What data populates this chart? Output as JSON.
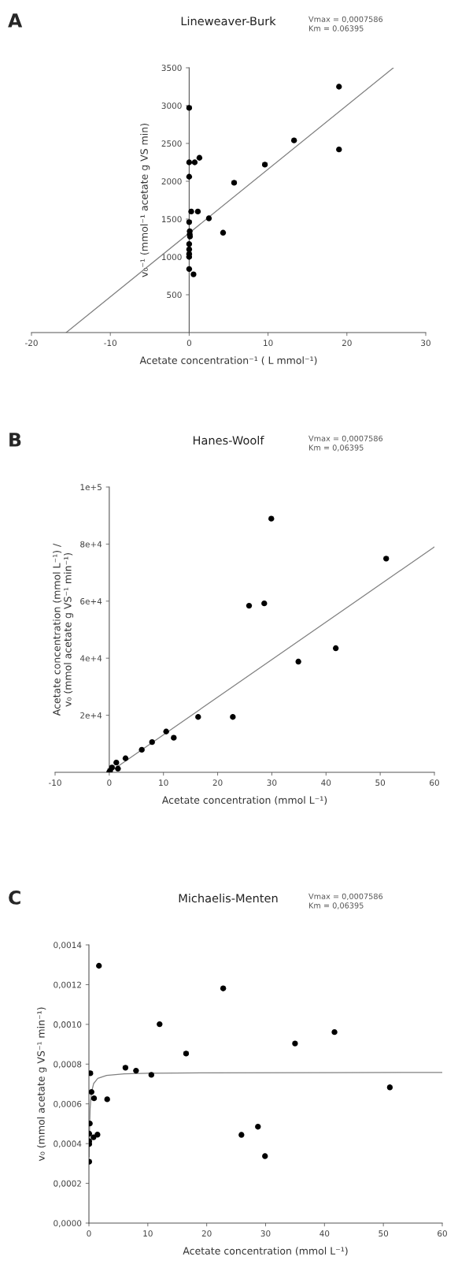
{
  "chart_data": [
    {
      "type": "scatter",
      "title": "Lineweaver-Burk",
      "xlabel": "Acetate concentration⁻¹ ( L mmol⁻¹)",
      "ylabel": "v₀⁻¹ (mmol⁻¹ acetate g VS min)",
      "annotations": [
        "A",
        "Vmax = 0,0007586\nKm = 0.06395"
      ],
      "xlim": [
        -20,
        30
      ],
      "xticks": [
        -20,
        -10,
        0,
        10,
        20,
        30
      ],
      "ylim": [
        0,
        3500
      ],
      "yticks": [
        500,
        1000,
        1500,
        2000,
        2500,
        3000,
        3500
      ],
      "series": [
        {
          "marker": "circle",
          "color": "#000000",
          "x": [
            0,
            19.0,
            19.0,
            13.3,
            9.6,
            5.7,
            2.5,
            4.3,
            1.3,
            0.7,
            0,
            0,
            0.26,
            1.1,
            0,
            0.07,
            0.07,
            0.1,
            0,
            0,
            0,
            0,
            0,
            0.55
          ],
          "values": [
            2970,
            3250,
            2420,
            2540,
            2220,
            1980,
            1510,
            1320,
            2310,
            2250,
            2250,
            2060,
            1600,
            1600,
            1460,
            1340,
            1300,
            1270,
            1170,
            1100,
            1040,
            1000,
            840,
            770
          ]
        },
        {
          "type": "line",
          "color": "#808080",
          "x": [
            -15.6,
            25.9
          ],
          "values": [
            0,
            3500
          ]
        }
      ]
    },
    {
      "type": "scatter",
      "title": "Hanes-Woolf",
      "xlabel": "Acetate concentration (mmol L⁻¹)",
      "ylabel": "Acetate concentration (mmol L⁻¹) /\nv₀ (mmol acetate g VS⁻¹ min⁻¹)",
      "annotations": [
        "B",
        "Vmax = 0,0007586\nKm = 0,06395"
      ],
      "xlim": [
        -10,
        60
      ],
      "xticks": [
        -10,
        0,
        10,
        20,
        30,
        40,
        50,
        60
      ],
      "ylim": [
        0,
        100000
      ],
      "yticks": [
        {
          "value": 20000,
          "label": "2e+4"
        },
        {
          "value": 40000,
          "label": "4e+4"
        },
        {
          "value": 60000,
          "label": "6e+4"
        },
        {
          "value": 80000,
          "label": "8e+4"
        },
        {
          "value": 100000,
          "label": "1e+5"
        }
      ],
      "series": [
        {
          "marker": "circle",
          "color": "#000000",
          "x": [
            29.9,
            51.1,
            25.8,
            28.6,
            34.9,
            41.8,
            16.4,
            22.8,
            10.5,
            11.9,
            7.9,
            6.0,
            3.0,
            1.3,
            1.6,
            0.5,
            0.16,
            0
          ],
          "values": [
            88900,
            74900,
            58400,
            59200,
            38800,
            43500,
            19400,
            19400,
            14300,
            12100,
            10600,
            7900,
            4900,
            3400,
            1300,
            1700,
            600,
            100
          ]
        },
        {
          "type": "line",
          "color": "#808080",
          "x": [
            0,
            60
          ],
          "values": [
            0,
            79000
          ]
        }
      ]
    },
    {
      "type": "scatter",
      "title": "Michaelis-Menten",
      "xlabel": "Acetate concentration (mmol L⁻¹)",
      "ylabel": "v₀ (mmol acetate g VS⁻¹ min⁻¹)",
      "annotations": [
        "C",
        "Vmax = 0,0007586\nKm = 0,06395"
      ],
      "xlim": [
        0,
        60
      ],
      "xticks": [
        0,
        10,
        20,
        30,
        40,
        50,
        60
      ],
      "ylim": [
        0,
        0.0014
      ],
      "yticks": [
        {
          "value": 0,
          "label": "0,0000"
        },
        {
          "value": 0.0002,
          "label": "0,0002"
        },
        {
          "value": 0.0004,
          "label": "0,0004"
        },
        {
          "value": 0.0006,
          "label": "0,0006"
        },
        {
          "value": 0.0008,
          "label": "0,0008"
        },
        {
          "value": 0.001,
          "label": "0,0010"
        },
        {
          "value": 0.0012,
          "label": "0,0012"
        },
        {
          "value": 0.0014,
          "label": "0,0014"
        }
      ],
      "series": [
        {
          "marker": "circle",
          "color": "#000000",
          "x": [
            1.7,
            22.8,
            12.0,
            41.7,
            35.0,
            16.5,
            6.2,
            8.0,
            10.6,
            0.24,
            51.1,
            0.44,
            0.87,
            3.1,
            0.15,
            28.7,
            25.9,
            1.45,
            0.78,
            0.05,
            0.05,
            0.05,
            29.9,
            0.05
          ],
          "values": [
            0.001295,
            0.001181,
            0.001001,
            0.000961,
            0.000904,
            0.000853,
            0.000782,
            0.000767,
            0.000746,
            0.000754,
            0.000683,
            0.00066,
            0.000628,
            0.000623,
            0.000501,
            0.000485,
            0.000444,
            0.000445,
            0.000432,
            0.00045,
            0.000412,
            0.000398,
            0.000337,
            0.000309
          ]
        },
        {
          "type": "line",
          "color": "#808080",
          "x": [
            0.05,
            0.1,
            0.2,
            0.4,
            0.8,
            1.5,
            3,
            6,
            10,
            20,
            40,
            60
          ],
          "values": [
            0.000333,
            0.000463,
            0.000575,
            0.000654,
            0.000702,
            0.000728,
            0.000743,
            0.000751,
            0.000754,
            0.000756,
            0.000757,
            0.000758
          ]
        }
      ]
    }
  ]
}
